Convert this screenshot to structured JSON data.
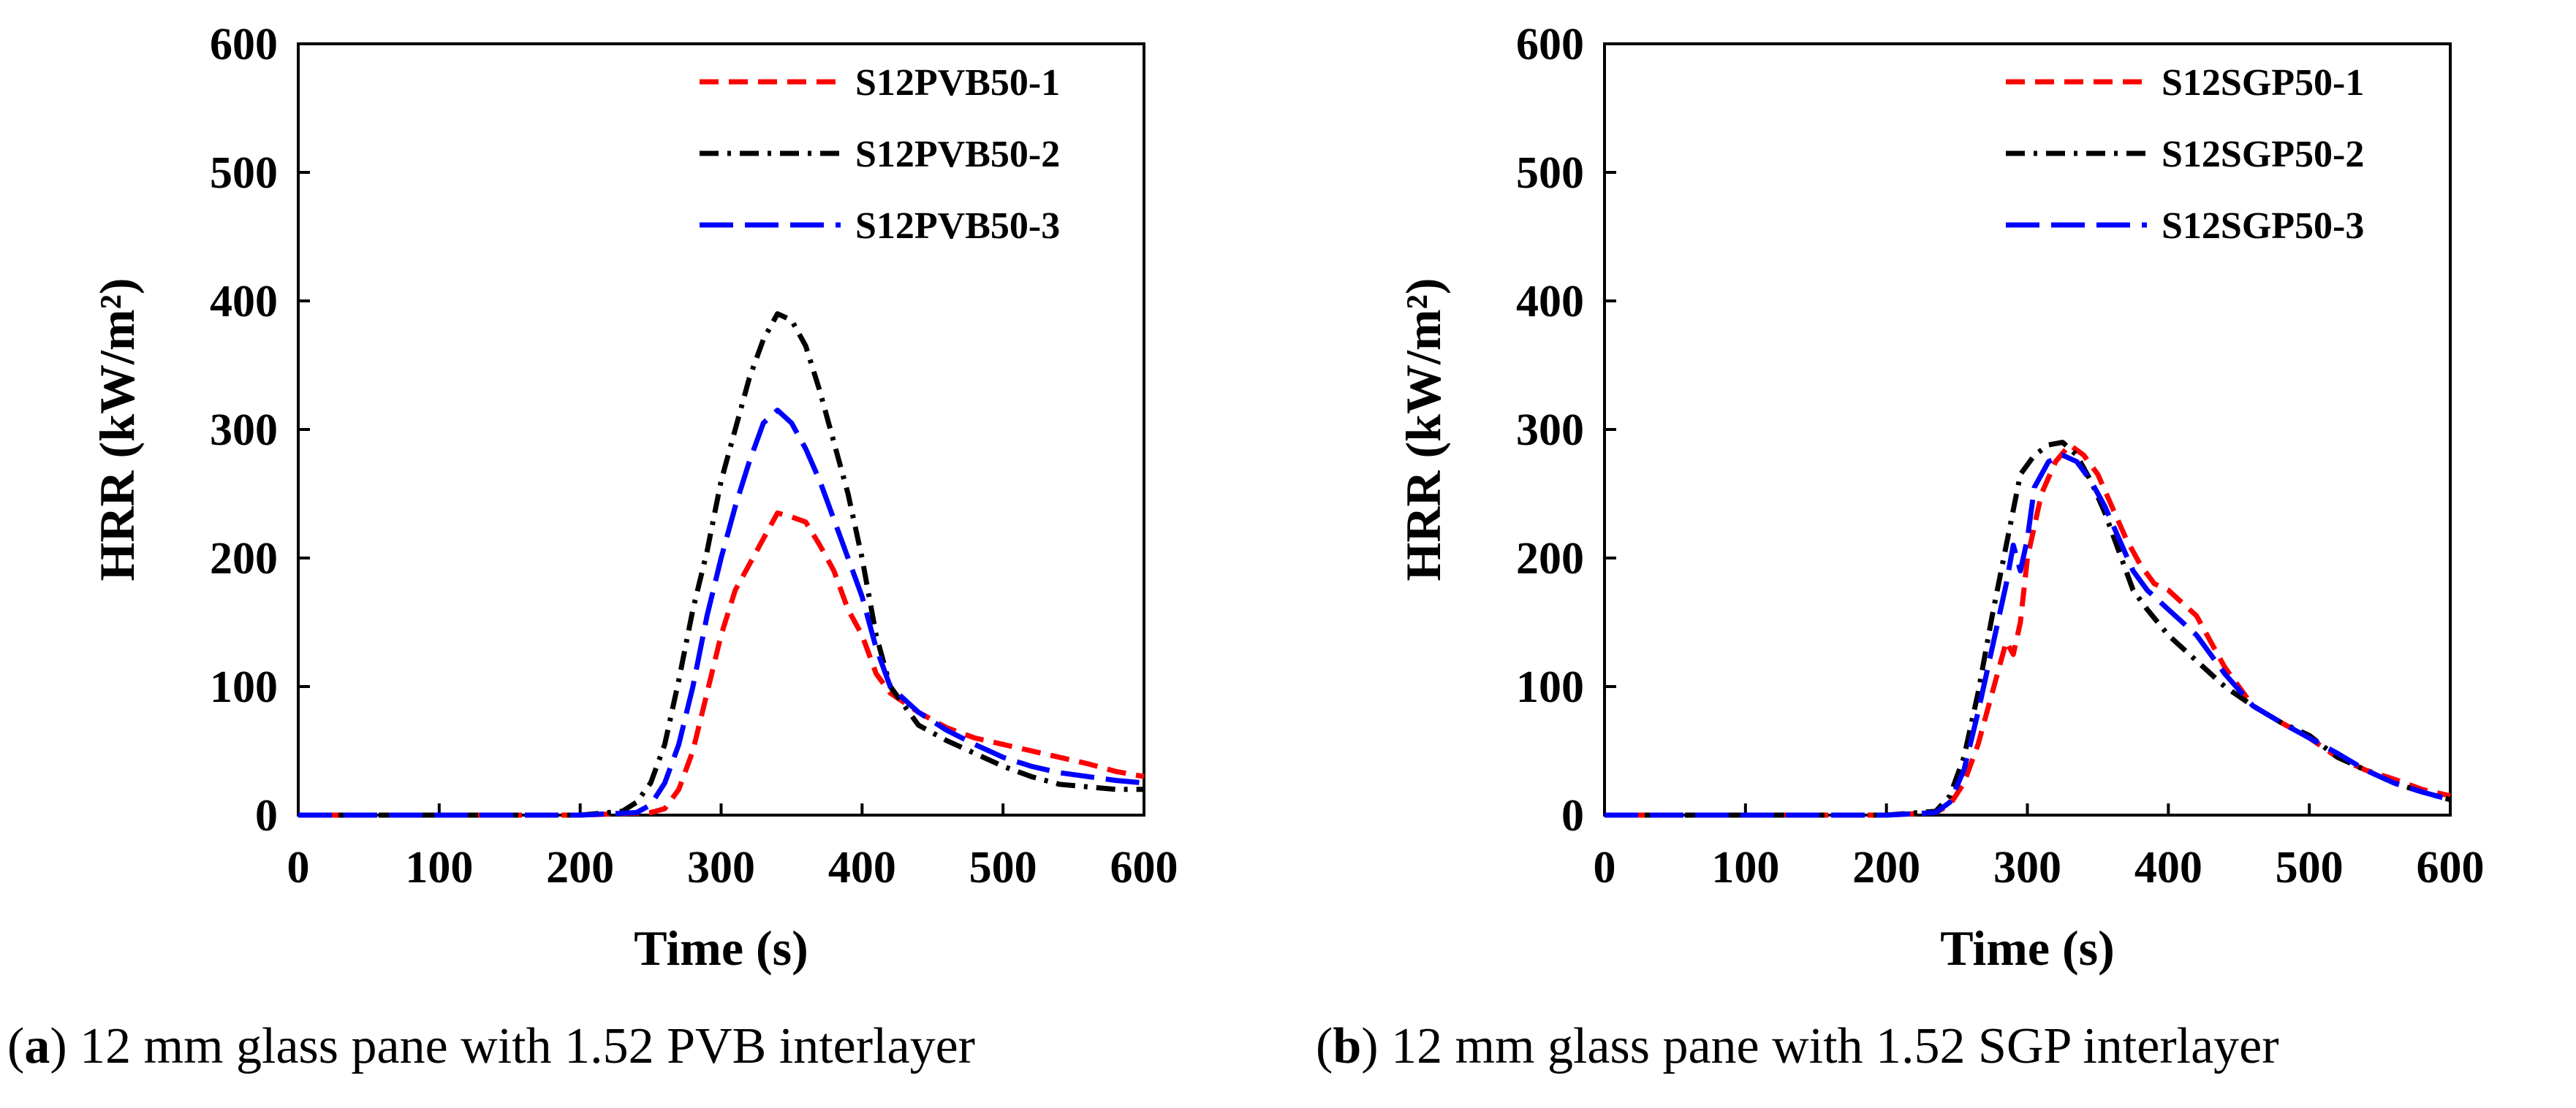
{
  "chart_data": [
    {
      "type": "line",
      "panel": "a",
      "title": "",
      "xlabel": "Time (s)",
      "ylabel": "HRR (kW/m²)",
      "xlim": [
        0,
        600
      ],
      "ylim": [
        0,
        600
      ],
      "xticks": [
        0,
        100,
        200,
        300,
        400,
        500,
        600
      ],
      "yticks": [
        0,
        100,
        200,
        300,
        400,
        500,
        600
      ],
      "grid": false,
      "legend_position": "top-right",
      "caption": {
        "letter": "a",
        "text": "12 mm glass pane with 1.52 PVB interlayer"
      },
      "series": [
        {
          "name": "S12PVB50-1",
          "color": "#ff0000",
          "style": "dashed",
          "x": [
            0,
            100,
            200,
            250,
            260,
            270,
            280,
            290,
            300,
            310,
            320,
            330,
            340,
            350,
            360,
            370,
            380,
            390,
            400,
            410,
            420,
            440,
            460,
            480,
            500,
            520,
            540,
            560,
            580,
            600
          ],
          "y": [
            0,
            0,
            0,
            2,
            5,
            20,
            50,
            95,
            140,
            175,
            195,
            215,
            235,
            232,
            228,
            210,
            190,
            160,
            140,
            110,
            95,
            80,
            68,
            60,
            55,
            50,
            45,
            40,
            34,
            30
          ]
        },
        {
          "name": "S12PVB50-2",
          "color": "#000000",
          "style": "dashdot",
          "x": [
            0,
            100,
            200,
            230,
            240,
            250,
            260,
            270,
            280,
            290,
            300,
            310,
            320,
            330,
            340,
            350,
            360,
            370,
            380,
            390,
            400,
            410,
            420,
            440,
            460,
            480,
            500,
            520,
            540,
            560,
            580,
            600
          ],
          "y": [
            0,
            0,
            0,
            3,
            10,
            25,
            55,
            105,
            160,
            205,
            260,
            300,
            340,
            370,
            390,
            385,
            365,
            330,
            290,
            250,
            200,
            140,
            100,
            70,
            58,
            48,
            38,
            30,
            24,
            22,
            20,
            20
          ]
        },
        {
          "name": "S12PVB50-3",
          "color": "#0000ff",
          "style": "longdash",
          "x": [
            0,
            100,
            200,
            240,
            250,
            260,
            270,
            280,
            290,
            300,
            310,
            320,
            330,
            340,
            350,
            360,
            370,
            380,
            390,
            400,
            410,
            420,
            440,
            460,
            480,
            500,
            520,
            540,
            560,
            580,
            600
          ],
          "y": [
            0,
            0,
            0,
            2,
            8,
            25,
            55,
            100,
            155,
            200,
            240,
            275,
            305,
            315,
            305,
            285,
            260,
            230,
            200,
            170,
            130,
            100,
            80,
            66,
            55,
            45,
            38,
            33,
            30,
            27,
            25
          ]
        }
      ]
    },
    {
      "type": "line",
      "panel": "b",
      "title": "",
      "xlabel": "Time (s)",
      "ylabel": "HRR (kW/m²)",
      "xlim": [
        0,
        600
      ],
      "ylim": [
        0,
        600
      ],
      "xticks": [
        0,
        100,
        200,
        300,
        400,
        500,
        600
      ],
      "yticks": [
        0,
        100,
        200,
        300,
        400,
        500,
        600
      ],
      "grid": false,
      "legend_position": "top-right",
      "caption": {
        "letter": "b",
        "text": "12 mm glass pane with 1.52 SGP interlayer"
      },
      "series": [
        {
          "name": "S12SGP50-1",
          "color": "#ff0000",
          "style": "dashed",
          "x": [
            0,
            100,
            200,
            235,
            245,
            255,
            265,
            275,
            285,
            290,
            295,
            300,
            310,
            320,
            330,
            340,
            350,
            360,
            370,
            380,
            390,
            400,
            410,
            420,
            440,
            460,
            480,
            500,
            520,
            540,
            560,
            580,
            600
          ],
          "y": [
            0,
            0,
            0,
            2,
            8,
            25,
            55,
            95,
            135,
            125,
            150,
            200,
            250,
            275,
            288,
            280,
            265,
            240,
            215,
            195,
            180,
            175,
            165,
            155,
            115,
            85,
            72,
            60,
            45,
            35,
            28,
            20,
            15
          ]
        },
        {
          "name": "S12SGP50-2",
          "color": "#000000",
          "style": "dashdot",
          "x": [
            0,
            100,
            200,
            235,
            245,
            255,
            265,
            275,
            285,
            295,
            305,
            315,
            325,
            335,
            345,
            355,
            365,
            375,
            385,
            400,
            420,
            440,
            460,
            480,
            500,
            520,
            540,
            560,
            580,
            600
          ],
          "y": [
            0,
            0,
            0,
            3,
            15,
            45,
            95,
            155,
            210,
            265,
            280,
            288,
            290,
            280,
            260,
            235,
            205,
            175,
            160,
            140,
            120,
            100,
            85,
            72,
            62,
            45,
            35,
            25,
            18,
            12
          ]
        },
        {
          "name": "S12SGP50-3",
          "color": "#0000ff",
          "style": "longdash",
          "x": [
            0,
            100,
            200,
            235,
            245,
            255,
            265,
            275,
            285,
            290,
            295,
            300,
            305,
            315,
            325,
            335,
            345,
            355,
            365,
            375,
            385,
            400,
            420,
            440,
            460,
            480,
            500,
            520,
            540,
            560,
            580,
            600
          ],
          "y": [
            0,
            0,
            0,
            2,
            10,
            35,
            80,
            130,
            180,
            210,
            190,
            215,
            255,
            275,
            280,
            275,
            260,
            240,
            215,
            190,
            175,
            160,
            140,
            110,
            85,
            72,
            60,
            48,
            35,
            25,
            18,
            12
          ]
        }
      ]
    }
  ]
}
